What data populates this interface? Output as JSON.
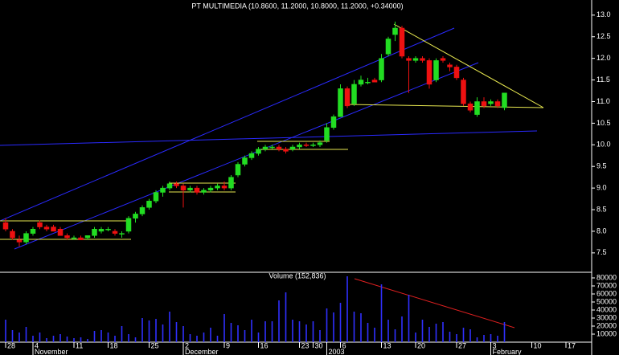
{
  "chart_data": [
    {
      "type": "candlestick",
      "title": "PT MULTIMEDIA (10.8600, 11.2000, 10.8000, 11.2000, +0.34000)",
      "up_color": "#22dd22",
      "down_color": "#ee1111",
      "ylim": [
        7.07,
        13.35
      ],
      "yticks": [
        7.5,
        {
          "value": 8,
          "label": "8.0"
        },
        8.5,
        {
          "value": 9,
          "label": "9.0"
        },
        9.5,
        {
          "value": 10,
          "label": "10.0"
        },
        10.5,
        {
          "value": 11,
          "label": "11.0"
        },
        11.5,
        {
          "value": 12,
          "label": "12.0"
        },
        12.5,
        {
          "value": 13,
          "label": "13.0"
        }
      ],
      "open": [
        8.2,
        8.0,
        7.8,
        7.75,
        7.95,
        8.2,
        8.1,
        8.1,
        8.05,
        7.9,
        7.85,
        7.85,
        7.85,
        7.9,
        8.0,
        8.05,
        8.0,
        7.95,
        8.0,
        8.3,
        8.4,
        8.55,
        8.7,
        8.9,
        9.0,
        9.1,
        9.05,
        8.95,
        9.0,
        8.9,
        8.95,
        9.0,
        9.05,
        9.0,
        9.3,
        9.55,
        9.7,
        9.8,
        9.9,
        9.95,
        9.95,
        9.9,
        9.9,
        9.95,
        10.0,
        9.98,
        10.0,
        10.1,
        10.4,
        10.65,
        11.3,
        10.95,
        11.4,
        11.45,
        11.5,
        11.5,
        12.1,
        12.55,
        12.7,
        12.0,
        11.95,
        12.0,
        11.95,
        11.5,
        12.0,
        11.85,
        11.8,
        11.5,
        10.95,
        10.7,
        11.0,
        10.95,
        11.0,
        10.86,
        null,
        null,
        null,
        null,
        null,
        null,
        null,
        null,
        null,
        null
      ],
      "high": [
        8.3,
        8.05,
        7.9,
        8.0,
        8.1,
        8.25,
        8.15,
        8.15,
        8.1,
        7.95,
        7.9,
        7.9,
        7.9,
        8.1,
        8.1,
        8.1,
        8.05,
        8.0,
        8.35,
        8.45,
        8.6,
        8.75,
        8.95,
        9.05,
        9.15,
        9.15,
        9.1,
        9.05,
        9.05,
        9.0,
        9.05,
        9.1,
        9.15,
        9.3,
        9.6,
        9.75,
        9.85,
        9.95,
        10.0,
        10.0,
        10.0,
        9.95,
        10.0,
        10.05,
        10.05,
        10.05,
        10.1,
        10.5,
        10.7,
        11.4,
        11.35,
        11.5,
        11.6,
        11.55,
        11.55,
        12.1,
        12.5,
        12.85,
        12.75,
        12.05,
        12.05,
        12.05,
        12.0,
        12.0,
        12.05,
        11.9,
        11.85,
        11.55,
        11.0,
        11.1,
        11.1,
        11.05,
        11.05,
        11.2,
        null,
        null,
        null,
        null,
        null,
        null,
        null,
        null,
        null,
        null
      ],
      "low": [
        8.0,
        7.8,
        7.65,
        7.7,
        7.9,
        8.05,
        8.0,
        8.0,
        7.9,
        7.8,
        7.8,
        7.8,
        7.8,
        7.85,
        7.95,
        8.0,
        7.9,
        7.85,
        7.95,
        8.2,
        8.35,
        8.5,
        8.65,
        8.8,
        8.95,
        9.0,
        8.55,
        8.9,
        8.85,
        8.85,
        8.9,
        8.95,
        8.95,
        8.95,
        9.25,
        9.5,
        9.65,
        9.75,
        9.85,
        9.9,
        9.85,
        9.8,
        9.85,
        9.9,
        9.95,
        9.95,
        9.95,
        10.05,
        10.35,
        10.65,
        10.85,
        10.9,
        11.35,
        11.4,
        11.45,
        11.45,
        12.05,
        12.4,
        12.0,
        11.2,
        11.9,
        11.9,
        11.3,
        11.45,
        11.9,
        11.7,
        11.5,
        10.9,
        10.75,
        10.65,
        10.85,
        10.9,
        10.85,
        10.8,
        null,
        null,
        null,
        null,
        null,
        null,
        null,
        null,
        null,
        null
      ],
      "close": [
        8.05,
        7.85,
        7.75,
        7.95,
        8.05,
        8.1,
        8.05,
        8.0,
        7.9,
        7.85,
        7.85,
        7.8,
        7.9,
        8.05,
        8.05,
        8.05,
        7.95,
        7.95,
        8.3,
        8.4,
        8.55,
        8.7,
        8.9,
        9.0,
        9.1,
        9.05,
        8.95,
        9.0,
        8.9,
        8.95,
        9.0,
        9.05,
        9.0,
        9.25,
        9.55,
        9.7,
        9.8,
        9.9,
        9.95,
        9.95,
        9.9,
        9.85,
        9.95,
        10.0,
        9.98,
        10.0,
        10.05,
        10.4,
        10.65,
        11.3,
        10.9,
        11.4,
        11.5,
        11.45,
        11.45,
        12.0,
        12.45,
        12.7,
        12.05,
        11.95,
        12.0,
        11.95,
        11.4,
        11.95,
        11.95,
        11.8,
        11.55,
        10.95,
        10.8,
        11.0,
        10.9,
        11.0,
        10.9,
        11.2,
        null,
        null,
        null,
        null,
        null,
        null,
        null,
        null,
        null,
        null
      ]
    },
    {
      "type": "bar",
      "title": "Volume (152,836)",
      "color": "#3030ff",
      "ylim": [
        0,
        86000
      ],
      "yticks": [
        10000,
        20000,
        30000,
        40000,
        50000,
        60000,
        70000,
        80000
      ],
      "categories": [
        "28",
        null,
        null,
        null,
        "4",
        null,
        null,
        null,
        null,
        null,
        "11",
        null,
        null,
        null,
        null,
        "18",
        null,
        null,
        null,
        null,
        null,
        "25",
        null,
        null,
        null,
        null,
        "2",
        null,
        null,
        null,
        null,
        null,
        "9",
        null,
        null,
        null,
        null,
        "16",
        null,
        null,
        null,
        null,
        null,
        "23",
        null,
        "30",
        null,
        null,
        null,
        "6",
        null,
        null,
        null,
        null,
        null,
        "13",
        null,
        null,
        null,
        null,
        "20",
        null,
        null,
        null,
        null,
        null,
        "27",
        null,
        null,
        null,
        null,
        "3",
        null,
        null,
        null,
        null,
        null,
        "10",
        null,
        null,
        null,
        null,
        "17",
        null
      ],
      "month_labels": [
        null,
        null,
        null,
        null,
        "November",
        null,
        null,
        null,
        null,
        null,
        null,
        null,
        null,
        null,
        null,
        null,
        null,
        null,
        null,
        null,
        null,
        null,
        null,
        null,
        null,
        null,
        "December",
        null,
        null,
        null,
        null,
        null,
        null,
        null,
        null,
        null,
        null,
        null,
        null,
        null,
        null,
        null,
        null,
        null,
        null,
        null,
        null,
        "2003",
        null,
        null,
        null,
        null,
        null,
        null,
        null,
        null,
        null,
        null,
        null,
        null,
        null,
        null,
        null,
        null,
        null,
        null,
        null,
        null,
        null,
        null,
        null,
        "February",
        null,
        null,
        null,
        null,
        null,
        null,
        null,
        null,
        null,
        null,
        null,
        null
      ],
      "values": [
        28000,
        15000,
        12000,
        19000,
        8000,
        12000,
        5000,
        8000,
        10000,
        7000,
        5000,
        6000,
        4000,
        14000,
        15000,
        12000,
        8000,
        20000,
        10000,
        6000,
        30000,
        27000,
        29000,
        22000,
        38000,
        25000,
        20000,
        10000,
        8000,
        12000,
        18000,
        8000,
        35000,
        24000,
        21000,
        15000,
        28000,
        12000,
        26000,
        26000,
        52000,
        62000,
        28000,
        26000,
        22000,
        26000,
        15000,
        42000,
        37000,
        49000,
        82000,
        38000,
        36000,
        24000,
        18000,
        72000,
        28000,
        16000,
        32000,
        59000,
        12000,
        28000,
        19000,
        23000,
        25000,
        13000,
        10000,
        18000,
        16000,
        6000,
        9000,
        10000,
        8000,
        25000,
        null,
        null,
        null,
        null,
        null,
        null,
        null,
        null,
        null,
        null
      ]
    }
  ]
}
